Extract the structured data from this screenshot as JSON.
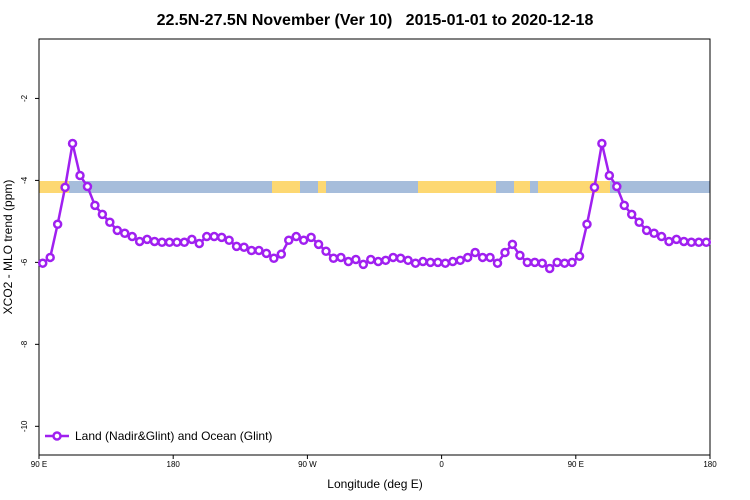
{
  "chart_data": {
    "type": "line",
    "title": "22.5N-27.5N November (Ver 10)   2015-01-01 to 2020-12-18",
    "x_label": "Longitude (deg E)",
    "y_label": "XCO2 - MLO trend (ppm)",
    "x": [
      92.5,
      97.5,
      102.5,
      107.5,
      112.5,
      117.5,
      122.5,
      127.5,
      132.5,
      137.5,
      142.5,
      147.5,
      152.5,
      157.5,
      162.5,
      167.5,
      172.5,
      177.5,
      182.5,
      187.5,
      192.5,
      197.5,
      202.5,
      207.5,
      212.5,
      217.5,
      222.5,
      227.5,
      232.5,
      237.5,
      242.5,
      247.5,
      252.5,
      257.5,
      262.5,
      267.5,
      272.5,
      277.5,
      282.5,
      287.5,
      292.5,
      297.5,
      302.5,
      307.5,
      312.5,
      317.5,
      322.5,
      327.5,
      332.5,
      337.5,
      342.5,
      347.5,
      352.5,
      357.5,
      362.5,
      367.5,
      372.5,
      377.5,
      382.5,
      387.5,
      392.5,
      397.5,
      402.5,
      407.5,
      412.5,
      417.5,
      422.5,
      427.5,
      432.5,
      437.5,
      442.5,
      447.5,
      452.5,
      457.5,
      462.5,
      467.5,
      472.5,
      477.5,
      482.5,
      487.5,
      492.5,
      497.5,
      502.5,
      507.5,
      512.5,
      517.5,
      522.5,
      527.5,
      532.5,
      537.5
    ],
    "series": [
      {
        "name": "Land (Nadir&Glint) and Ocean (Glint)",
        "color": "#a020f0",
        "values": [
          -6.02,
          -5.88,
          -5.07,
          -4.17,
          -3.1,
          -3.88,
          -4.15,
          -4.61,
          -4.83,
          -5.02,
          -5.22,
          -5.29,
          -5.37,
          -5.49,
          -5.44,
          -5.49,
          -5.51,
          -5.51,
          -5.51,
          -5.51,
          -5.44,
          -5.54,
          -5.37,
          -5.37,
          -5.39,
          -5.46,
          -5.61,
          -5.63,
          -5.71,
          -5.71,
          -5.78,
          -5.9,
          -5.8,
          -5.46,
          -5.37,
          -5.46,
          -5.39,
          -5.56,
          -5.73,
          -5.9,
          -5.88,
          -5.98,
          -5.93,
          -6.05,
          -5.93,
          -5.98,
          -5.95,
          -5.88,
          -5.9,
          -5.95,
          -6.02,
          -5.98,
          -6.0,
          -6.0,
          -6.02,
          -5.98,
          -5.95,
          -5.88,
          -5.76,
          -5.88,
          -5.88,
          -6.02,
          -5.76,
          -5.56,
          -5.83,
          -6.0,
          -6.0,
          -6.02,
          -6.15,
          -6.0,
          -6.02,
          -6.0,
          -5.85,
          -5.07,
          -4.17,
          -3.1,
          -3.88,
          -4.15,
          -4.61,
          -4.83,
          -5.02,
          -5.22,
          -5.29,
          -5.37,
          -5.49,
          -5.44,
          -5.49,
          -5.51,
          -5.51,
          -5.51
        ]
      }
    ],
    "xlim": [
      90,
      540
    ],
    "xticks": [
      {
        "value": 90,
        "label": "90 E"
      },
      {
        "value": 180,
        "label": "180"
      },
      {
        "value": 270,
        "label": "90 W"
      },
      {
        "value": 360,
        "label": "0"
      },
      {
        "value": 450,
        "label": "90 E"
      },
      {
        "value": 540,
        "label": "180"
      }
    ],
    "ylim": [
      -10.7,
      -0.55
    ],
    "yticks": [
      -10,
      -8,
      -6,
      -4,
      -2
    ],
    "legend": "lower left"
  }
}
